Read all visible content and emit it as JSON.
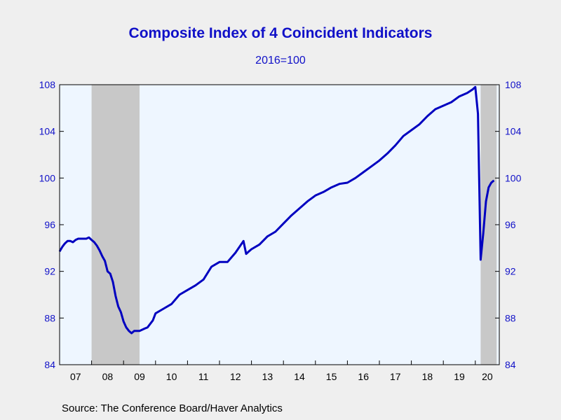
{
  "header": {
    "title": "Composite Index of 4 Coincident Indicators",
    "subtitle": "2016=100"
  },
  "footer": {
    "source": "Source:  The Conference Board/Haver Analytics"
  },
  "colors": {
    "line": "#0000c0",
    "recession": "#c8c8c8",
    "plot_bg": "#eef6ff",
    "axis_text": "#1010c8"
  },
  "chart_data": {
    "type": "line",
    "title": "Composite Index of 4 Coincident Indicators",
    "subtitle": "2016=100",
    "xlabel": "",
    "ylabel": "",
    "ylim": [
      84,
      108
    ],
    "xlim": [
      2007.0,
      2020.75
    ],
    "y_ticks": [
      84,
      88,
      92,
      96,
      100,
      104,
      108
    ],
    "y_tick_labels_left": [
      "84",
      "88",
      "92",
      "96",
      "100",
      "104",
      "108"
    ],
    "y_tick_labels_right": [
      "84",
      "88",
      "92",
      "96",
      "100",
      "104",
      "108"
    ],
    "x_tick_labels": [
      "07",
      "08",
      "09",
      "10",
      "11",
      "12",
      "13",
      "14",
      "15",
      "16",
      "17",
      "18",
      "19",
      "20"
    ],
    "grid": false,
    "legend": "none",
    "recessions": [
      {
        "start": 2008.0,
        "end": 2009.5
      },
      {
        "start": 2020.167,
        "end": 2020.667
      }
    ],
    "series": [
      {
        "x": [
          2007.0,
          2007.083,
          2007.167,
          2007.25,
          2007.333,
          2007.417,
          2007.5,
          2007.583,
          2007.667,
          2007.75,
          2007.833,
          2007.917,
          2008.0,
          2008.083,
          2008.167,
          2008.25,
          2008.333,
          2008.417,
          2008.5,
          2008.583,
          2008.667,
          2008.75,
          2008.833,
          2008.917,
          2009.0,
          2009.083,
          2009.167,
          2009.25,
          2009.333,
          2009.417,
          2009.5,
          2009.583,
          2009.667,
          2009.75,
          2009.833,
          2009.917,
          2010.0,
          2010.25,
          2010.5,
          2010.75,
          2011.0,
          2011.25,
          2011.5,
          2011.75,
          2012.0,
          2012.25,
          2012.5,
          2012.75,
          2012.833,
          2012.917,
          2013.0,
          2013.25,
          2013.5,
          2013.75,
          2014.0,
          2014.25,
          2014.5,
          2014.75,
          2015.0,
          2015.25,
          2015.5,
          2015.75,
          2016.0,
          2016.25,
          2016.5,
          2016.75,
          2017.0,
          2017.25,
          2017.5,
          2017.75,
          2018.0,
          2018.25,
          2018.5,
          2018.75,
          2019.0,
          2019.25,
          2019.5,
          2019.75,
          2019.917,
          2020.0,
          2020.083,
          2020.167,
          2020.25,
          2020.333,
          2020.417,
          2020.5,
          2020.583
        ],
        "y": [
          93.7,
          94.1,
          94.4,
          94.6,
          94.6,
          94.5,
          94.7,
          94.8,
          94.8,
          94.8,
          94.8,
          94.9,
          94.7,
          94.5,
          94.2,
          93.8,
          93.3,
          92.9,
          92.0,
          91.8,
          91.1,
          89.9,
          89.0,
          88.5,
          87.7,
          87.2,
          86.9,
          86.7,
          86.9,
          86.9,
          86.9,
          87.0,
          87.1,
          87.2,
          87.5,
          87.8,
          88.4,
          88.8,
          89.2,
          90.0,
          90.4,
          90.8,
          91.3,
          92.4,
          92.8,
          92.8,
          93.6,
          94.6,
          93.5,
          93.7,
          93.9,
          94.3,
          95.0,
          95.4,
          96.1,
          96.8,
          97.4,
          98.0,
          98.5,
          98.8,
          99.2,
          99.5,
          99.6,
          100.0,
          100.5,
          101.0,
          101.5,
          102.1,
          102.8,
          103.6,
          104.1,
          104.6,
          105.3,
          105.9,
          106.2,
          106.5,
          107.0,
          107.3,
          107.6,
          107.8,
          105.5,
          93.0,
          95.3,
          98.0,
          99.2,
          99.6,
          99.8
        ]
      }
    ]
  }
}
